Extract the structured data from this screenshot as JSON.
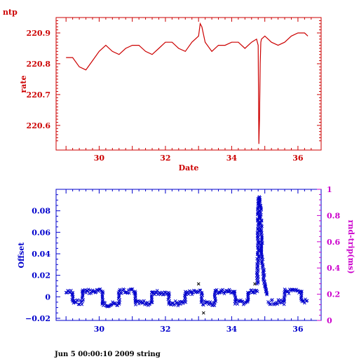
{
  "footer": "Jun  5 00:00:10 2009 string",
  "colors": {
    "top": "#cc0000",
    "bottom": "#0000cc",
    "right_axis": "#cc00cc"
  },
  "chart_data": [
    {
      "type": "line",
      "title": "ntp",
      "xlabel": "Date",
      "ylabel": "rate",
      "xlim": [
        28.7,
        36.7
      ],
      "ylim": [
        220.52,
        220.95
      ],
      "xticks": [
        30,
        32,
        34,
        36
      ],
      "yticks": [
        220.6,
        220.7,
        220.8,
        220.9
      ],
      "x": [
        29.0,
        29.2,
        29.4,
        29.6,
        29.8,
        30.0,
        30.2,
        30.4,
        30.6,
        30.8,
        31.0,
        31.2,
        31.4,
        31.6,
        31.8,
        32.0,
        32.2,
        32.4,
        32.6,
        32.8,
        33.0,
        33.05,
        33.1,
        33.2,
        33.4,
        33.6,
        33.8,
        34.0,
        34.2,
        34.4,
        34.6,
        34.75,
        34.8,
        34.82,
        34.84,
        34.86,
        34.88,
        34.9,
        35.0,
        35.2,
        35.4,
        35.6,
        35.8,
        36.0,
        36.2,
        36.3
      ],
      "y": [
        220.82,
        220.82,
        220.79,
        220.78,
        220.81,
        220.84,
        220.86,
        220.84,
        220.83,
        220.85,
        220.86,
        220.86,
        220.84,
        220.83,
        220.85,
        220.87,
        220.87,
        220.85,
        220.84,
        220.87,
        220.89,
        220.93,
        220.92,
        220.87,
        220.84,
        220.86,
        220.86,
        220.87,
        220.87,
        220.85,
        220.87,
        220.88,
        220.86,
        220.54,
        220.62,
        220.8,
        220.87,
        220.88,
        220.89,
        220.87,
        220.86,
        220.87,
        220.89,
        220.9,
        220.9,
        220.89
      ]
    },
    {
      "type": "scatter",
      "xlabel": "",
      "ylabel": "Offset",
      "ylabel_right": "rnd-trip(ms)",
      "xlim": [
        28.7,
        36.7
      ],
      "ylim": [
        -0.022,
        0.1
      ],
      "ylim_right": [
        0,
        1
      ],
      "xticks": [
        30,
        32,
        34,
        36
      ],
      "yticks": [
        -0.02,
        0,
        0.02,
        0.04,
        0.06,
        0.08
      ],
      "yticks_right": [
        0,
        0.2,
        0.4,
        0.6,
        0.8,
        1
      ],
      "segments": [
        {
          "x0": 29.0,
          "x1": 29.2,
          "y": 0.004
        },
        {
          "x0": 29.2,
          "x1": 29.5,
          "y": -0.005
        },
        {
          "x0": 29.5,
          "x1": 30.1,
          "y": 0.005
        },
        {
          "x0": 30.1,
          "x1": 30.6,
          "y": -0.007
        },
        {
          "x0": 30.6,
          "x1": 31.1,
          "y": 0.005
        },
        {
          "x0": 31.1,
          "x1": 31.6,
          "y": -0.006
        },
        {
          "x0": 31.6,
          "x1": 32.1,
          "y": 0.004
        },
        {
          "x0": 32.1,
          "x1": 32.6,
          "y": -0.006
        },
        {
          "x0": 32.6,
          "x1": 33.1,
          "y": 0.004
        },
        {
          "x0": 33.1,
          "x1": 33.5,
          "y": -0.006
        },
        {
          "x0": 33.5,
          "x1": 34.1,
          "y": 0.005
        },
        {
          "x0": 34.1,
          "x1": 34.5,
          "y": -0.005
        },
        {
          "x0": 34.5,
          "x1": 34.78,
          "y": 0.004
        },
        {
          "x0": 35.1,
          "x1": 35.6,
          "y": -0.005
        },
        {
          "x0": 35.6,
          "x1": 36.1,
          "y": 0.005
        },
        {
          "x0": 36.1,
          "x1": 36.3,
          "y": -0.004
        }
      ],
      "spike": {
        "x": [
          34.78,
          34.82,
          34.86,
          34.9,
          34.95,
          35.0,
          35.05
        ],
        "y": [
          0.012,
          0.093,
          0.085,
          0.05,
          0.025,
          0.01,
          0.002
        ]
      },
      "outliers": [
        {
          "x": 33.15,
          "y": -0.015
        },
        {
          "x": 33.0,
          "y": 0.012
        },
        {
          "x": 34.7,
          "y": 0.012
        }
      ]
    }
  ]
}
